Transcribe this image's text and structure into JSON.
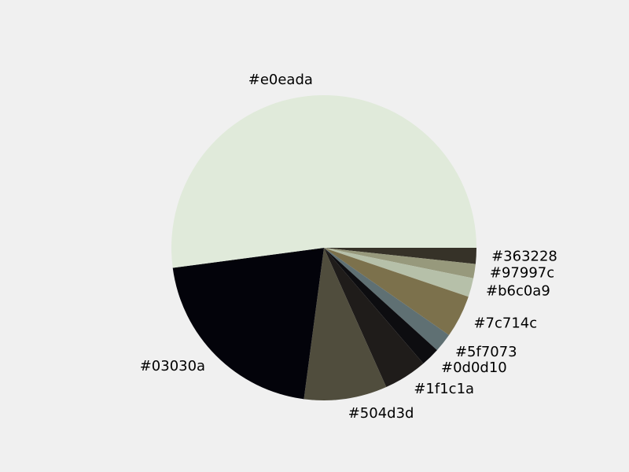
{
  "chart_data": {
    "type": "pie",
    "start_angle_deg": 0,
    "direction": "clockwise",
    "slices": [
      {
        "label": "#363228",
        "value": 1.7,
        "color": "#363228"
      },
      {
        "label": "#97997c",
        "value": 1.5,
        "color": "#97997c"
      },
      {
        "label": "#b6c0a9",
        "value": 2.0,
        "color": "#b6c0a9"
      },
      {
        "label": "#7c714c",
        "value": 4.5,
        "color": "#7c714c"
      },
      {
        "label": "#5f7073",
        "value": 2.0,
        "color": "#5f7073"
      },
      {
        "label": "#0d0d10",
        "value": 2.0,
        "color": "#0d0d10"
      },
      {
        "label": "#1f1c1a",
        "value": 4.6,
        "color": "#1f1c1a"
      },
      {
        "label": "#504d3d",
        "value": 8.8,
        "color": "#504d3d"
      },
      {
        "label": "#03030a",
        "value": 20.8,
        "color": "#03030a"
      },
      {
        "label": "#e0eada",
        "value": 52.1,
        "color": "#e0eada"
      }
    ]
  }
}
